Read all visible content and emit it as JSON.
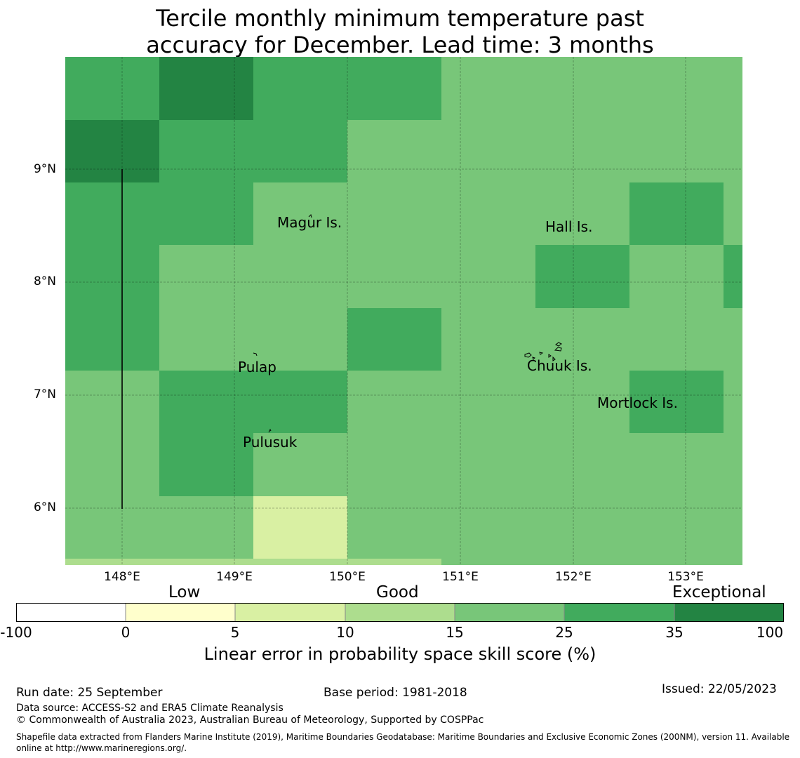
{
  "title": {
    "line1": "Tercile monthly minimum temperature past",
    "line2": "accuracy for December. Lead time: 3 months"
  },
  "map": {
    "lat_labels": [
      "9°N",
      "8°N",
      "7°N",
      "6°N"
    ],
    "lon_labels": [
      "148°E",
      "149°E",
      "150°E",
      "151°E",
      "152°E",
      "153°E"
    ],
    "place_labels": [
      "Magur Is.",
      "Hall Is.",
      "Pulap",
      "Chuuk Is.",
      "Mortlock Is.",
      "Pulusuk"
    ],
    "colors": {
      "skill_0_5": "#ffffcc",
      "skill_5_10": "#d9f0a3",
      "skill_10_15": "#addd8e",
      "skill_15_25": "#78c679",
      "skill_25_35": "#41ab5d",
      "skill_35_100": "#238443"
    }
  },
  "colorbar": {
    "categories": [
      "Low",
      "Good",
      "Exceptional"
    ],
    "ticks": [
      "-100",
      "0",
      "5",
      "10",
      "15",
      "25",
      "35",
      "100"
    ],
    "colors": [
      "#ffffff",
      "#ffffcc",
      "#d9f0a3",
      "#addd8e",
      "#78c679",
      "#41ab5d",
      "#238443"
    ],
    "title": "Linear error in probability space skill score (%)"
  },
  "footer": {
    "run_date": "Run date: 25 September",
    "base_period": "Base period: 1981-2018",
    "issued": "Issued: 22/05/2023",
    "data_source": "Data source: ACCESS-S2 and ERA5 Climate Reanalysis",
    "copyright": "© Commonwealth of Australia 2023, Australian Bureau of Meteorology, Supported by COSPPac",
    "shapefile_line1": "Shapefile data extracted from Flanders Marine Institute (2019), Maritime Boundaries Geodatabase: Maritime Boundaries and Exclusive Economic Zones (200NM), version 11. Available",
    "shapefile_line2": "online at http://www.marineregions.org/."
  }
}
